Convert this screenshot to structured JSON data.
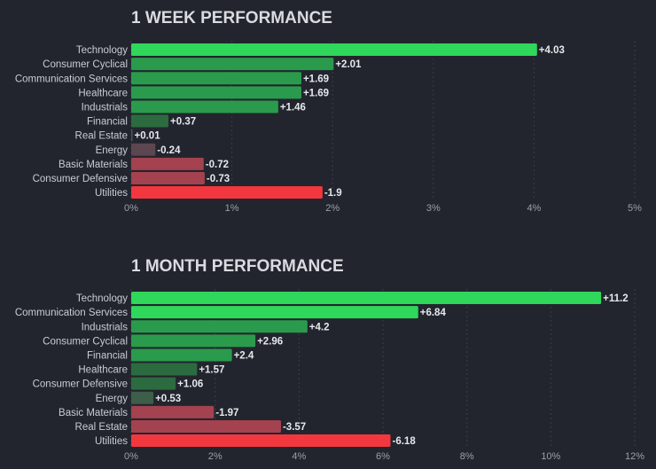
{
  "colors": {
    "background": "#22252e",
    "strong_positive": "#2fd75a",
    "medium_positive": "#2a9b4c",
    "weak_positive": "#2c6b3f",
    "faint_positive": "#3d5e48",
    "faint_negative": "#5c4650",
    "medium_negative": "#a4424f",
    "strong_negative": "#f2373f"
  },
  "chart_data": [
    {
      "type": "bar",
      "orientation": "horizontal",
      "title": "1 WEEK PERFORMANCE",
      "categories": [
        "Technology",
        "Consumer Cyclical",
        "Communication Services",
        "Healthcare",
        "Industrials",
        "Financial",
        "Real Estate",
        "Energy",
        "Basic Materials",
        "Consumer Defensive",
        "Utilities"
      ],
      "values": [
        4.03,
        2.01,
        1.69,
        1.69,
        1.46,
        0.37,
        0.01,
        -0.24,
        -0.72,
        -0.73,
        -1.9
      ],
      "value_labels": [
        "+4.03",
        "+2.01",
        "+1.69",
        "+1.69",
        "+1.46",
        "+0.37",
        "+0.01",
        "-0.24",
        "-0.72",
        "-0.73",
        "-1.9"
      ],
      "xlim": [
        0,
        5
      ],
      "xticks": [
        0,
        1,
        2,
        3,
        4,
        5
      ],
      "xtick_labels": [
        "0%",
        "1%",
        "2%",
        "3%",
        "4%",
        "5%"
      ],
      "bar_length": "absolute value",
      "grid": true
    },
    {
      "type": "bar",
      "orientation": "horizontal",
      "title": "1 MONTH PERFORMANCE",
      "categories": [
        "Technology",
        "Communication Services",
        "Industrials",
        "Consumer Cyclical",
        "Financial",
        "Healthcare",
        "Consumer Defensive",
        "Energy",
        "Basic Materials",
        "Real Estate",
        "Utilities"
      ],
      "values": [
        11.2,
        6.84,
        4.2,
        2.96,
        2.4,
        1.57,
        1.06,
        0.53,
        -1.97,
        -3.57,
        -6.18
      ],
      "value_labels": [
        "+11.2",
        "+6.84",
        "+4.2",
        "+2.96",
        "+2.4",
        "+1.57",
        "+1.06",
        "+0.53",
        "-1.97",
        "-3.57",
        "-6.18"
      ],
      "xlim": [
        0,
        12
      ],
      "xticks": [
        0,
        2,
        4,
        6,
        8,
        10,
        12
      ],
      "xtick_labels": [
        "0%",
        "2%",
        "4%",
        "6%",
        "8%",
        "10%",
        "12%"
      ],
      "bar_length": "absolute value",
      "grid": true
    }
  ]
}
